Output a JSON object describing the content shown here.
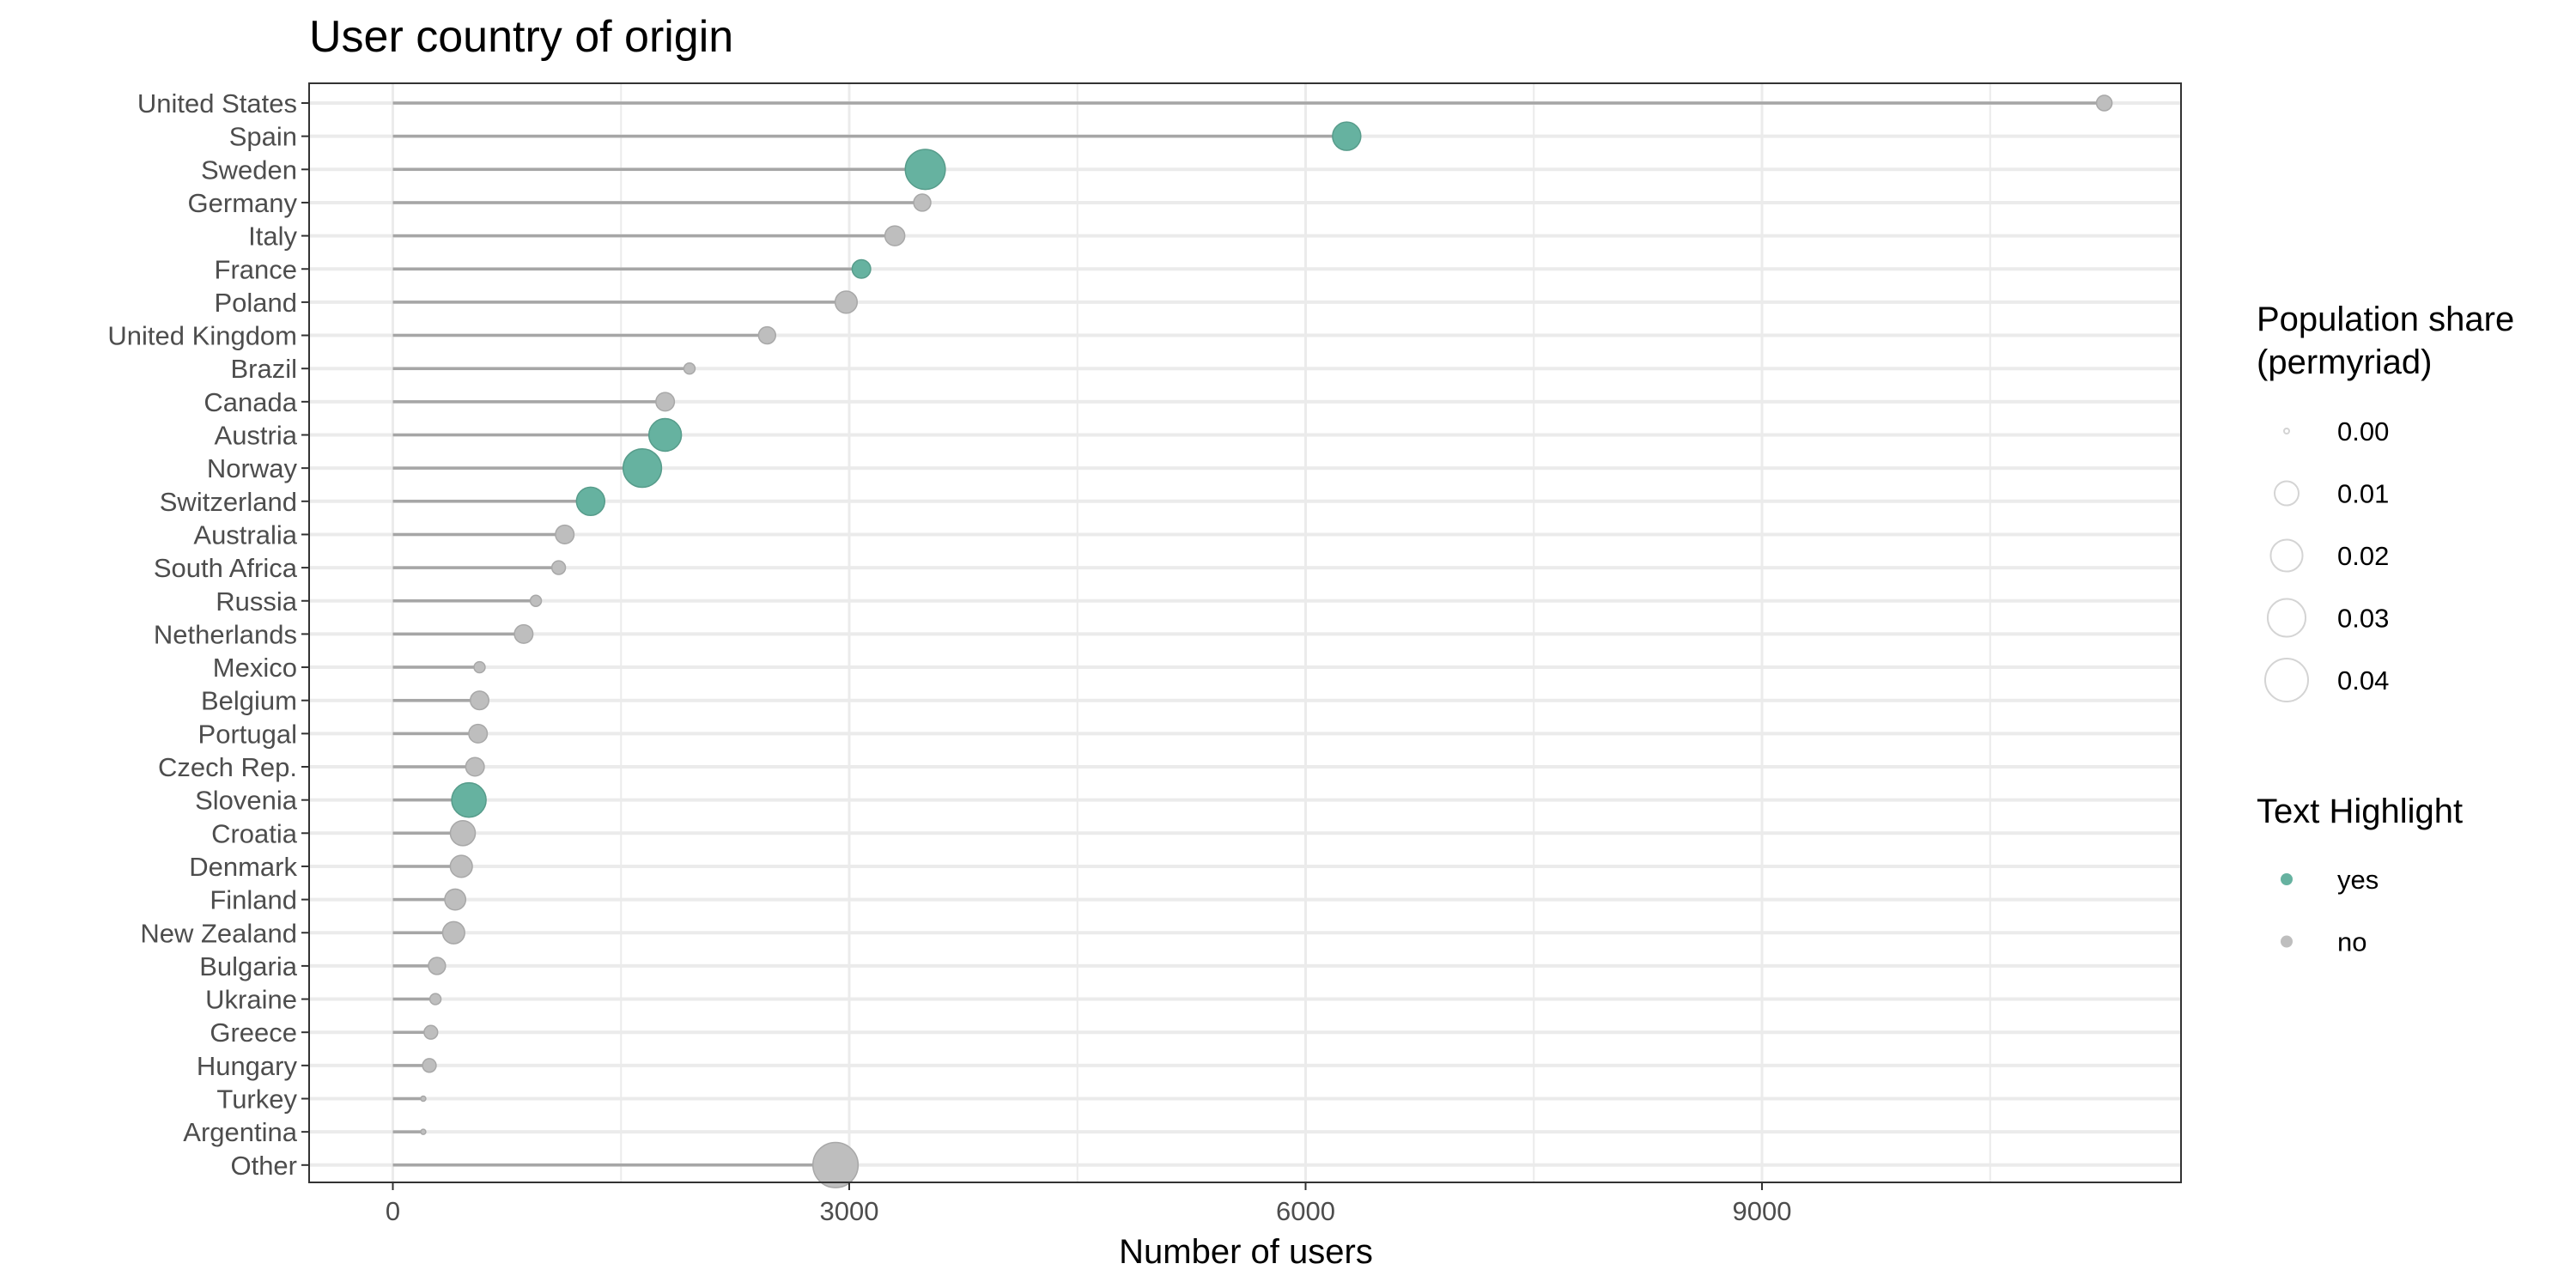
{
  "chart_data": {
    "type": "scatter",
    "subtype": "lollipop",
    "title": "User country of origin",
    "xlabel": "Number of users",
    "ylabel": "",
    "xlim": [
      -300,
      11850
    ],
    "xticks": [
      0,
      3000,
      6000,
      9000
    ],
    "x_tick_labels": [
      "0",
      "3000",
      "6000",
      "9000"
    ],
    "grid": true,
    "legend_position": "right",
    "colors": {
      "yes": "#66b2a0",
      "no": "#bebebe",
      "segment": "#a6a6a6",
      "grid": "#ebebeb",
      "panel_border": "#333333"
    },
    "size_legend": {
      "title_lines": [
        "Population share",
        "(permyriad)"
      ],
      "values": [
        0.0,
        0.01,
        0.02,
        0.03,
        0.04
      ],
      "labels": [
        "0.00",
        "0.01",
        "0.02",
        "0.03",
        "0.04"
      ]
    },
    "color_legend": {
      "title": "Text Highlight",
      "entries": [
        {
          "key": "yes",
          "label": "yes"
        },
        {
          "key": "no",
          "label": "no"
        }
      ]
    },
    "points": [
      {
        "country": "United States",
        "users": 11250,
        "share": 0.003,
        "highlight": "no"
      },
      {
        "country": "Spain",
        "users": 6270,
        "share": 0.015,
        "highlight": "yes"
      },
      {
        "country": "Sweden",
        "users": 3500,
        "share": 0.034,
        "highlight": "yes"
      },
      {
        "country": "Germany",
        "users": 3480,
        "share": 0.004,
        "highlight": "no"
      },
      {
        "country": "Italy",
        "users": 3300,
        "share": 0.006,
        "highlight": "no"
      },
      {
        "country": "France",
        "users": 3080,
        "share": 0.005,
        "highlight": "yes"
      },
      {
        "country": "Poland",
        "users": 2980,
        "share": 0.008,
        "highlight": "no"
      },
      {
        "country": "United Kingdom",
        "users": 2460,
        "share": 0.004,
        "highlight": "no"
      },
      {
        "country": "Brazil",
        "users": 1950,
        "share": 0.001,
        "highlight": "no"
      },
      {
        "country": "Canada",
        "users": 1790,
        "share": 0.005,
        "highlight": "no"
      },
      {
        "country": "Austria",
        "users": 1790,
        "share": 0.021,
        "highlight": "yes"
      },
      {
        "country": "Norway",
        "users": 1640,
        "share": 0.031,
        "highlight": "yes"
      },
      {
        "country": "Switzerland",
        "users": 1300,
        "share": 0.015,
        "highlight": "yes"
      },
      {
        "country": "Australia",
        "users": 1130,
        "share": 0.005,
        "highlight": "no"
      },
      {
        "country": "South Africa",
        "users": 1090,
        "share": 0.002,
        "highlight": "no"
      },
      {
        "country": "Russia",
        "users": 940,
        "share": 0.001,
        "highlight": "no"
      },
      {
        "country": "Netherlands",
        "users": 860,
        "share": 0.005,
        "highlight": "no"
      },
      {
        "country": "Mexico",
        "users": 570,
        "share": 0.001,
        "highlight": "no"
      },
      {
        "country": "Belgium",
        "users": 570,
        "share": 0.005,
        "highlight": "no"
      },
      {
        "country": "Portugal",
        "users": 560,
        "share": 0.005,
        "highlight": "no"
      },
      {
        "country": "Czech Rep.",
        "users": 540,
        "share": 0.005,
        "highlight": "no"
      },
      {
        "country": "Slovenia",
        "users": 500,
        "share": 0.024,
        "highlight": "yes"
      },
      {
        "country": "Croatia",
        "users": 460,
        "share": 0.011,
        "highlight": "no"
      },
      {
        "country": "Denmark",
        "users": 450,
        "share": 0.008,
        "highlight": "no"
      },
      {
        "country": "Finland",
        "users": 410,
        "share": 0.007,
        "highlight": "no"
      },
      {
        "country": "New Zealand",
        "users": 400,
        "share": 0.008,
        "highlight": "no"
      },
      {
        "country": "Bulgaria",
        "users": 290,
        "share": 0.004,
        "highlight": "no"
      },
      {
        "country": "Ukraine",
        "users": 280,
        "share": 0.001,
        "highlight": "no"
      },
      {
        "country": "Greece",
        "users": 250,
        "share": 0.002,
        "highlight": "no"
      },
      {
        "country": "Hungary",
        "users": 240,
        "share": 0.002,
        "highlight": "no"
      },
      {
        "country": "Turkey",
        "users": 200,
        "share": 0.0,
        "highlight": "no"
      },
      {
        "country": "Argentina",
        "users": 200,
        "share": 0.0,
        "highlight": "no"
      },
      {
        "country": "Other",
        "users": 2910,
        "share": 0.045,
        "highlight": "no"
      }
    ]
  }
}
